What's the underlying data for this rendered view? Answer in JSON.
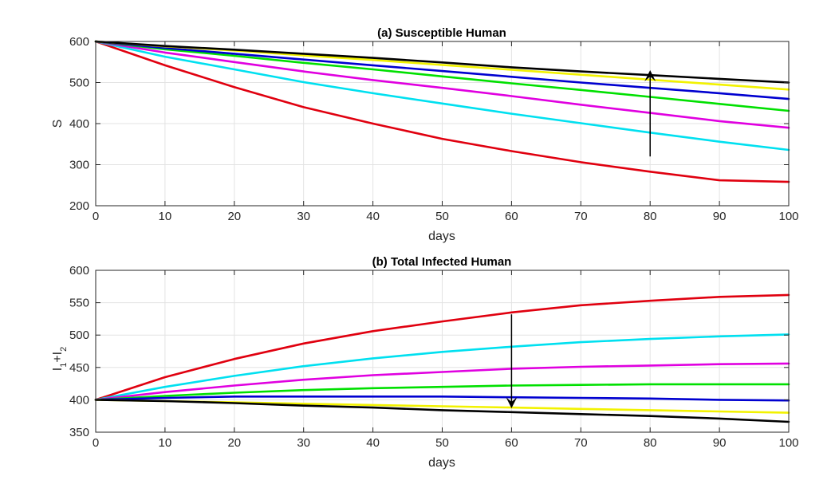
{
  "chart_data": [
    {
      "type": "line",
      "title": "(a) Susceptible Human",
      "xlabel": "days",
      "ylabel": "S",
      "xlim": [
        0,
        100
      ],
      "ylim": [
        200,
        600
      ],
      "xticks": [
        0,
        10,
        20,
        30,
        40,
        50,
        60,
        70,
        80,
        90,
        100
      ],
      "yticks": [
        200,
        300,
        400,
        500,
        600
      ],
      "grid": true,
      "x": [
        0,
        10,
        20,
        30,
        40,
        50,
        60,
        70,
        80,
        90,
        100
      ],
      "series": [
        {
          "color": "#e0000f",
          "values": [
            600,
            542,
            489,
            440,
            400,
            363,
            333,
            306,
            283,
            262,
            258
          ]
        },
        {
          "color": "#00e0f0",
          "values": [
            600,
            563,
            532,
            501,
            474,
            449,
            424,
            401,
            378,
            356,
            336
          ]
        },
        {
          "color": "#e000e0",
          "values": [
            600,
            573,
            550,
            527,
            506,
            487,
            467,
            446,
            426,
            406,
            390
          ]
        },
        {
          "color": "#00e000",
          "values": [
            600,
            581,
            565,
            548,
            532,
            515,
            498,
            482,
            465,
            448,
            431
          ]
        },
        {
          "color": "#0000d0",
          "values": [
            600,
            584,
            570,
            556,
            542,
            528,
            514,
            500,
            487,
            474,
            460
          ]
        },
        {
          "color": "#f2f200",
          "values": [
            600,
            588,
            578,
            566,
            555,
            543,
            531,
            519,
            507,
            495,
            483
          ]
        },
        {
          "color": "#000000",
          "values": [
            600,
            589,
            580,
            570,
            560,
            549,
            537,
            527,
            518,
            509,
            500
          ]
        }
      ],
      "annotation": {
        "type": "arrow",
        "x": 80,
        "y_from": 320,
        "y_to": 530
      }
    },
    {
      "type": "line",
      "title": "(b) Total Infected Human",
      "xlabel": "days",
      "ylabel": {
        "main": "I",
        "sub1": "1",
        "plus": "+I",
        "sub2": "2"
      },
      "xlim": [
        0,
        100
      ],
      "ylim": [
        350,
        600
      ],
      "xticks": [
        0,
        10,
        20,
        30,
        40,
        50,
        60,
        70,
        80,
        90,
        100
      ],
      "yticks": [
        350,
        400,
        450,
        500,
        550,
        600
      ],
      "grid": true,
      "x": [
        0,
        10,
        20,
        30,
        40,
        50,
        60,
        70,
        80,
        90,
        100
      ],
      "series": [
        {
          "color": "#e0000f",
          "values": [
            400,
            435,
            463,
            487,
            506,
            521,
            535,
            546,
            553,
            559,
            562
          ]
        },
        {
          "color": "#00e0f0",
          "values": [
            400,
            420,
            437,
            452,
            464,
            474,
            482,
            489,
            494,
            498,
            501
          ]
        },
        {
          "color": "#e000e0",
          "values": [
            400,
            412,
            422,
            431,
            438,
            443,
            448,
            451,
            453,
            455,
            456
          ]
        },
        {
          "color": "#00e000",
          "values": [
            400,
            406,
            411,
            415,
            418,
            420,
            422,
            423,
            424,
            424,
            424
          ]
        },
        {
          "color": "#0000d0",
          "values": [
            400,
            403,
            405,
            405,
            405,
            405,
            404,
            403,
            402,
            400,
            399
          ]
        },
        {
          "color": "#f2f200",
          "values": [
            400,
            398,
            396,
            394,
            392,
            390,
            388,
            386,
            384,
            382,
            380
          ]
        },
        {
          "color": "#000000",
          "values": [
            400,
            398,
            395,
            391,
            388,
            384,
            381,
            378,
            375,
            371,
            366
          ]
        }
      ],
      "annotation": {
        "type": "arrow",
        "x": 60,
        "y_from": 532,
        "y_to": 387
      }
    }
  ]
}
